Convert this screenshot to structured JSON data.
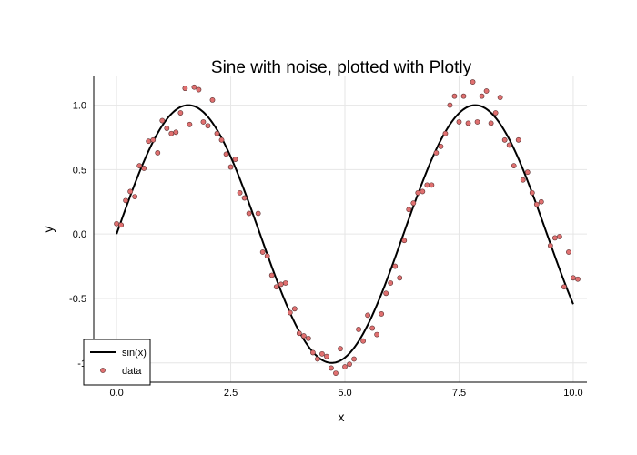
{
  "chart_data": {
    "type": "scatter",
    "title": "Sine with noise, plotted with Plotly",
    "xlabel": "x",
    "ylabel": "y",
    "xlim": [
      -0.5,
      10.3
    ],
    "ylim": [
      -1.15,
      1.23
    ],
    "grid": true,
    "legend_position": "bottom-left",
    "x_ticks": [
      0,
      2.5,
      5,
      7.5,
      10
    ],
    "x_tick_labels": [
      "0.0",
      "2.5",
      "5.0",
      "7.5",
      "10.0"
    ],
    "y_ticks": [
      -1,
      -0.5,
      0,
      0.5,
      1
    ],
    "y_tick_labels": [
      "-1",
      "-0.5",
      "0.0",
      "0.5",
      "1.0"
    ],
    "series": [
      {
        "name": "sin(x)",
        "kind": "line",
        "color": "#000000",
        "x_start": 0,
        "x_end": 10,
        "function": "sin"
      },
      {
        "name": "data",
        "kind": "scatter",
        "color": "#e07070",
        "edge_color": "#5a3030",
        "points": [
          [
            0.0,
            0.08
          ],
          [
            0.1,
            0.07
          ],
          [
            0.2,
            0.26
          ],
          [
            0.3,
            0.33
          ],
          [
            0.4,
            0.29
          ],
          [
            0.5,
            0.53
          ],
          [
            0.6,
            0.51
          ],
          [
            0.7,
            0.72
          ],
          [
            0.8,
            0.73
          ],
          [
            0.9,
            0.63
          ],
          [
            1.0,
            0.88
          ],
          [
            1.1,
            0.82
          ],
          [
            1.2,
            0.78
          ],
          [
            1.3,
            0.79
          ],
          [
            1.4,
            0.94
          ],
          [
            1.5,
            1.13
          ],
          [
            1.6,
            0.85
          ],
          [
            1.7,
            1.14
          ],
          [
            1.8,
            1.12
          ],
          [
            1.9,
            0.87
          ],
          [
            2.0,
            0.84
          ],
          [
            2.1,
            1.04
          ],
          [
            2.2,
            0.78
          ],
          [
            2.3,
            0.73
          ],
          [
            2.4,
            0.62
          ],
          [
            2.5,
            0.52
          ],
          [
            2.6,
            0.58
          ],
          [
            2.7,
            0.32
          ],
          [
            2.8,
            0.28
          ],
          [
            2.9,
            0.16
          ],
          [
            3.1,
            0.16
          ],
          [
            3.2,
            -0.14
          ],
          [
            3.3,
            -0.17
          ],
          [
            3.4,
            -0.32
          ],
          [
            3.5,
            -0.41
          ],
          [
            3.6,
            -0.39
          ],
          [
            3.7,
            -0.38
          ],
          [
            3.8,
            -0.61
          ],
          [
            3.9,
            -0.58
          ],
          [
            4.0,
            -0.77
          ],
          [
            4.1,
            -0.79
          ],
          [
            4.2,
            -0.81
          ],
          [
            4.3,
            -0.92
          ],
          [
            4.4,
            -0.97
          ],
          [
            4.5,
            -0.93
          ],
          [
            4.6,
            -0.95
          ],
          [
            4.7,
            -1.04
          ],
          [
            4.8,
            -1.08
          ],
          [
            4.9,
            -0.89
          ],
          [
            5.0,
            -1.03
          ],
          [
            5.1,
            -1.01
          ],
          [
            5.2,
            -0.97
          ],
          [
            5.3,
            -0.74
          ],
          [
            5.4,
            -0.83
          ],
          [
            5.5,
            -0.63
          ],
          [
            5.6,
            -0.73
          ],
          [
            5.7,
            -0.78
          ],
          [
            5.8,
            -0.62
          ],
          [
            5.9,
            -0.46
          ],
          [
            6.0,
            -0.38
          ],
          [
            6.1,
            -0.25
          ],
          [
            6.2,
            -0.34
          ],
          [
            6.3,
            -0.05
          ],
          [
            6.4,
            0.19
          ],
          [
            6.5,
            0.24
          ],
          [
            6.6,
            0.32
          ],
          [
            6.7,
            0.33
          ],
          [
            6.8,
            0.38
          ],
          [
            6.9,
            0.38
          ],
          [
            7.0,
            0.63
          ],
          [
            7.1,
            0.68
          ],
          [
            7.2,
            0.78
          ],
          [
            7.3,
            1.0
          ],
          [
            7.4,
            1.07
          ],
          [
            7.5,
            0.87
          ],
          [
            7.6,
            1.07
          ],
          [
            7.7,
            0.86
          ],
          [
            7.8,
            1.18
          ],
          [
            7.9,
            0.87
          ],
          [
            8.0,
            1.07
          ],
          [
            8.1,
            1.11
          ],
          [
            8.2,
            0.86
          ],
          [
            8.3,
            0.94
          ],
          [
            8.4,
            1.06
          ],
          [
            8.5,
            0.73
          ],
          [
            8.6,
            0.69
          ],
          [
            8.7,
            0.53
          ],
          [
            8.8,
            0.73
          ],
          [
            8.9,
            0.42
          ],
          [
            9.0,
            0.48
          ],
          [
            9.1,
            0.32
          ],
          [
            9.2,
            0.23
          ],
          [
            9.3,
            0.25
          ],
          [
            9.5,
            -0.09
          ],
          [
            9.6,
            -0.03
          ],
          [
            9.7,
            -0.02
          ],
          [
            9.8,
            -0.41
          ],
          [
            9.9,
            -0.14
          ],
          [
            10.0,
            -0.34
          ],
          [
            10.1,
            -0.35
          ]
        ]
      }
    ]
  }
}
